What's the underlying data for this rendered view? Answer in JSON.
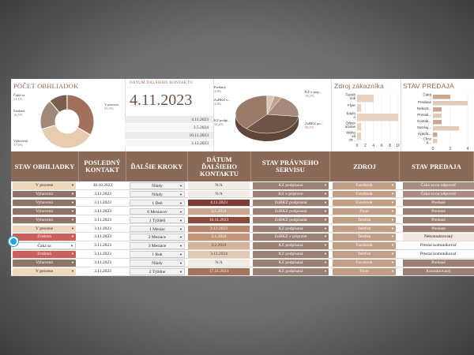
{
  "dashboard": {
    "pocet_title": "POČET OBHLIADOK",
    "pocet_legend": [
      {
        "label": "Čaká sa",
        "pct": "11,1%"
      },
      {
        "label": "Zrušená",
        "pct": "18,5%"
      },
      {
        "label": "Vybavená",
        "pct": "37,0%"
      },
      {
        "label": "V procese",
        "pct": "33,3%"
      }
    ],
    "datum_label": "DÁTUM ĎALŠIEHO KONTAKTU",
    "datum_big": "4.11.2023",
    "datum_list": [
      "4.11.2023",
      "3.5.2024",
      "10.11.2023",
      "3.12.2023"
    ],
    "pravny_legend": [
      {
        "label": "Predaný",
        "pct": "3,8%"
      },
      {
        "label": "ZoBKZ v...",
        "pct": "3,8%"
      },
      {
        "label": "KZ v príp...",
        "pct": "19,2%"
      },
      {
        "label": "KZ podpí...",
        "pct": "34,6%"
      },
      {
        "label": "ZoBKZ po...",
        "pct": "38,5%"
      }
    ],
    "zdroj_title": "Zdroj zákazníka",
    "zdroj_categories": [
      "Faceb ook",
      "Flyer",
      "Telefó n",
      "Odpor účenie",
      "Webo vá str..."
    ],
    "zdroj_values": [
      4,
      1,
      10,
      1,
      1
    ],
    "zdroj_ticks": [
      "0",
      "2",
      "4",
      "6",
      "8",
      "10"
    ],
    "predaj_title": "STAV PREDAJA",
    "predaj_categories": [
      "Čaká ...",
      "Predané",
      "Nekont...",
      "Prestal...",
      "Kontak...",
      "Nezáuj...",
      "Vyjedn...",
      "Chce p..."
    ],
    "predaj_values": [
      2,
      4,
      1,
      1,
      1,
      3,
      0.5,
      0.5
    ],
    "predaj_ticks": [
      "0",
      "2",
      "4"
    ]
  },
  "table": {
    "headers": [
      "STAV OBHLIADKY",
      "POSLEDNÝ KONTAKT",
      "ĎALŠIE KROKY",
      "DÁTUM ĎALŠIEHO KONTAKTU",
      "STAV PRÁVNEHO SERVISU",
      "ZDROJ",
      "STAV PREDAJA"
    ],
    "rows": [
      {
        "stav": "V procese",
        "posledny": "30.10.2023",
        "kroky": "Nikdy",
        "datum": "N/A",
        "pravny": "KZ podpísaná",
        "zdroj": "Facebook",
        "predaj": "Čaká sa na odpoveď"
      },
      {
        "stav": "Vybavená",
        "posledny": "3.11.2023",
        "kroky": "Nikdy",
        "datum": "N/A",
        "pravny": "KZ v príprave",
        "zdroj": "Facebook",
        "predaj": "Čaká sa na odpoveď"
      },
      {
        "stav": "Vybavená",
        "posledny": "3.11.2023",
        "kroky": "1 Deň",
        "datum": "4.11.2023",
        "pravny": "ZoBKZ podpísaná",
        "zdroj": "Facebook",
        "predaj": "Predané"
      },
      {
        "stav": "Vybavená",
        "posledny": "3.11.2023",
        "kroky": "6 Mesiacov",
        "datum": "3.5.2024",
        "pravny": "ZoBKZ podpísaná",
        "zdroj": "Flyer",
        "predaj": "Predané"
      },
      {
        "stav": "Vybavená",
        "posledny": "3.11.2023",
        "kroky": "1 Týždeň",
        "datum": "10.11.2023",
        "pravny": "ZoBKZ podpísaná",
        "zdroj": "Telefón",
        "predaj": "Predané"
      },
      {
        "stav": "V procese",
        "posledny": "3.11.2023",
        "kroky": "1 Mesiac",
        "datum": "3.12.2023",
        "pravny": "KZ podpísaná",
        "zdroj": "Telefón",
        "predaj": "Predané"
      },
      {
        "stav": "Zrušená",
        "posledny": "3.11.2023",
        "kroky": "2 Mesiace",
        "datum": "3.1.2024",
        "pravny": "ZoBKZ v príprave",
        "zdroj": "Telefón",
        "predaj": "Nekontaktovaný"
      },
      {
        "stav": "Čaká sa",
        "posledny": "3.11.2023",
        "kroky": "3 Mesiace",
        "datum": "3.2.2024",
        "pravny": "KZ podpísaná",
        "zdroj": "Facebook",
        "predaj": "Prestal komunikovať"
      },
      {
        "stav": "Zrušená",
        "posledny": "3.11.2023",
        "kroky": "1 Rok",
        "datum": "3.11.2024",
        "pravny": "KZ podpísaná",
        "zdroj": "Telefón",
        "predaj": "Prestal komunikovať"
      },
      {
        "stav": "Vybavená",
        "posledny": "3.11.2023",
        "kroky": "Nikdy",
        "datum": "N/A",
        "pravny": "KZ podpísaná",
        "zdroj": "Facebook",
        "predaj": "Predané"
      },
      {
        "stav": "V procese",
        "posledny": "3.11.2023",
        "kroky": "2 Týždne",
        "datum": "17.11.2023",
        "pravny": "KZ podpísaná",
        "zdroj": "Flyer",
        "predaj": "Kontaktovaný"
      }
    ]
  },
  "colors": {
    "header": "#8a6a57",
    "stav": {
      "V procese": "#f0d8bf",
      "Vybavená": "#8e7466",
      "Zrušená": "#c9605c",
      "Čaká sa": "#ffffff"
    },
    "datum": {
      "N/A": "#f1ebe6",
      "4.11.2023": "#7d3b33",
      "3.5.2024": "#c9a48e",
      "10.11.2023": "#8a4a3c",
      "3.12.2023": "#b8876d",
      "3.1.2024": "#c39677",
      "3.2.2024": "#d5b39c",
      "3.11.2024": "#e3c9b5",
      "17.11.2023": "#a5755b"
    },
    "pravny": "#9b8075",
    "zdroj": "#c29e87",
    "predaj": {
      "Čaká sa na odpoveď": "#a88d80",
      "Predané": "#9a7f72",
      "Nekontaktovaný": "#f2e7de",
      "Prestal komunikovať": "#ffffff",
      "Kontaktovaný": "#9a7f72"
    }
  },
  "icons": {
    "dropdown": "chevron-down-icon",
    "cursor": "cursor-indicator-icon"
  }
}
